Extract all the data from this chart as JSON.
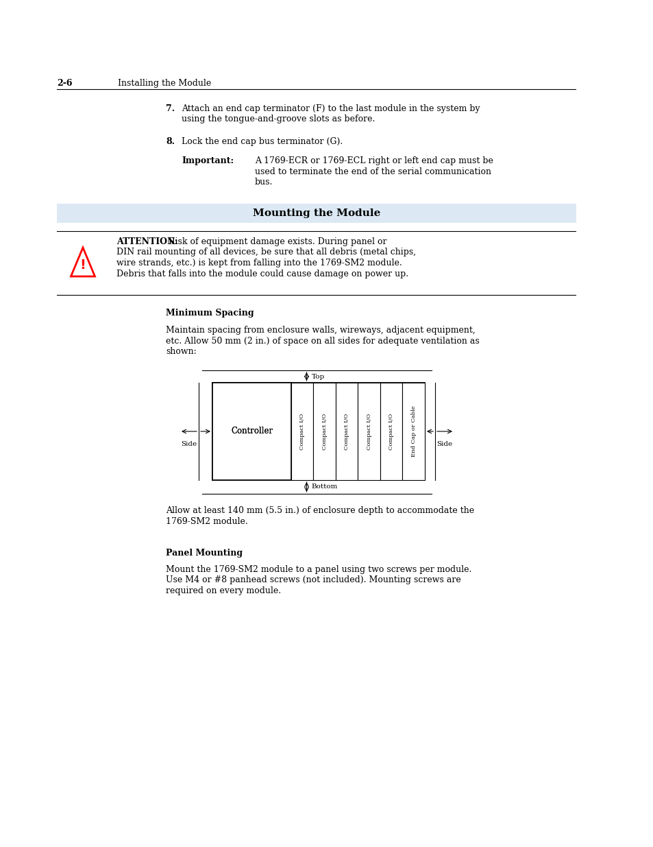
{
  "bg_color": "#ffffff",
  "page_width": 9.54,
  "page_height": 12.35,
  "header_num": "2-6",
  "header_sub": "Installing the Module",
  "item7_bold": "7.",
  "item7_text": "Attach an end cap terminator (F) to the last module in the system by\nusing the tongue-and-groove slots as before.",
  "item8_bold": "8.",
  "item8_text": "Lock the end cap bus terminator (G).",
  "important_label": "Important:",
  "important_line1": "A 1769-ECR or 1769-ECL right or left end cap must be",
  "important_line2": "used to terminate the end of the serial communication",
  "important_line3": "bus.",
  "section_title": "Mounting the Module",
  "section_bg": "#dce9f5",
  "attn_label": "ATTENTION:",
  "attn_line1": " Risk of equipment damage exists. During panel or",
  "attn_line2": "DIN rail mounting of all devices, be sure that all debris (metal chips,",
  "attn_line3": "wire strands, etc.) is kept from falling into the 1769-SM2 module.",
  "attn_line4": "Debris that falls into the module could cause damage on power up.",
  "min_spacing_title": "Minimum Spacing",
  "ms_line1": "Maintain spacing from enclosure walls, wireways, adjacent equipment,",
  "ms_line2": "etc. Allow 50 mm (2 in.) of space on all sides for adequate ventilation as",
  "ms_line3": "shown:",
  "diag_top": "Top",
  "diag_bottom": "Bottom",
  "diag_left": "Side",
  "diag_right": "Side",
  "diag_ctrl": "Controller",
  "diag_cols": [
    "Compact I/O",
    "Compact I/O",
    "Compact I/O",
    "Compact I/O",
    "Compact I/O",
    "End Cap or Cable"
  ],
  "depth_line1": "Allow at least 140 mm (5.5 in.) of enclosure depth to accommodate the",
  "depth_line2": "1769-SM2 module.",
  "panel_title": "Panel Mounting",
  "panel_line1": "Mount the 1769-SM2 module to a panel using two screws per module.",
  "panel_line2": "Use M4 or #8 panhead screws (not included). Mounting screws are",
  "panel_line3": "required on every module."
}
